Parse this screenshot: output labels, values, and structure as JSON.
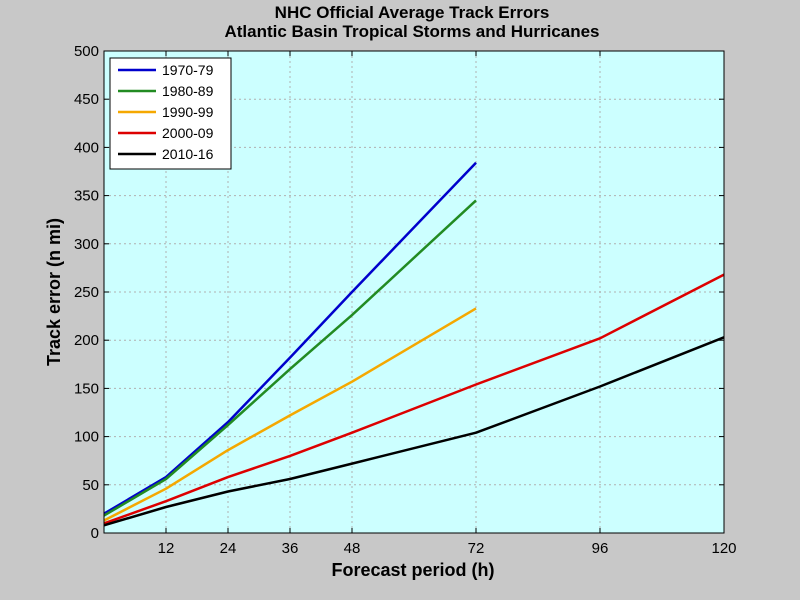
{
  "chart_data": {
    "type": "line",
    "title": "NHC Official Average Track Errors",
    "subtitle": "Atlantic Basin Tropical Storms and Hurricanes",
    "xlabel": "Forecast period (h)",
    "ylabel": "Track error (n mi)",
    "xlim": [
      0,
      120
    ],
    "ylim": [
      0,
      500
    ],
    "xticks": [
      12,
      24,
      36,
      48,
      72,
      96,
      120
    ],
    "yticks": [
      0,
      50,
      100,
      150,
      200,
      250,
      300,
      350,
      400,
      450,
      500
    ],
    "grid": true,
    "legend_position": "top-left",
    "background_color": "#ccffff",
    "series": [
      {
        "name": "1970-79",
        "color": "#0000cc",
        "x": [
          0,
          12,
          24,
          36,
          48,
          72
        ],
        "y": [
          20,
          58,
          115,
          182,
          250,
          384
        ]
      },
      {
        "name": "1980-89",
        "color": "#228b22",
        "x": [
          0,
          12,
          24,
          36,
          48,
          72
        ],
        "y": [
          18,
          56,
          112,
          170,
          226,
          345
        ]
      },
      {
        "name": "1990-99",
        "color": "#f5a800",
        "x": [
          0,
          12,
          24,
          36,
          48,
          72
        ],
        "y": [
          13,
          46,
          86,
          122,
          157,
          233
        ]
      },
      {
        "name": "2000-09",
        "color": "#dd0000",
        "x": [
          0,
          12,
          24,
          36,
          48,
          72,
          96,
          120
        ],
        "y": [
          10,
          33,
          58,
          80,
          104,
          154,
          202,
          268
        ]
      },
      {
        "name": "2010-16",
        "color": "#000000",
        "x": [
          0,
          12,
          24,
          36,
          48,
          72,
          96,
          120
        ],
        "y": [
          8,
          27,
          43,
          56,
          72,
          104,
          152,
          203
        ]
      }
    ]
  }
}
